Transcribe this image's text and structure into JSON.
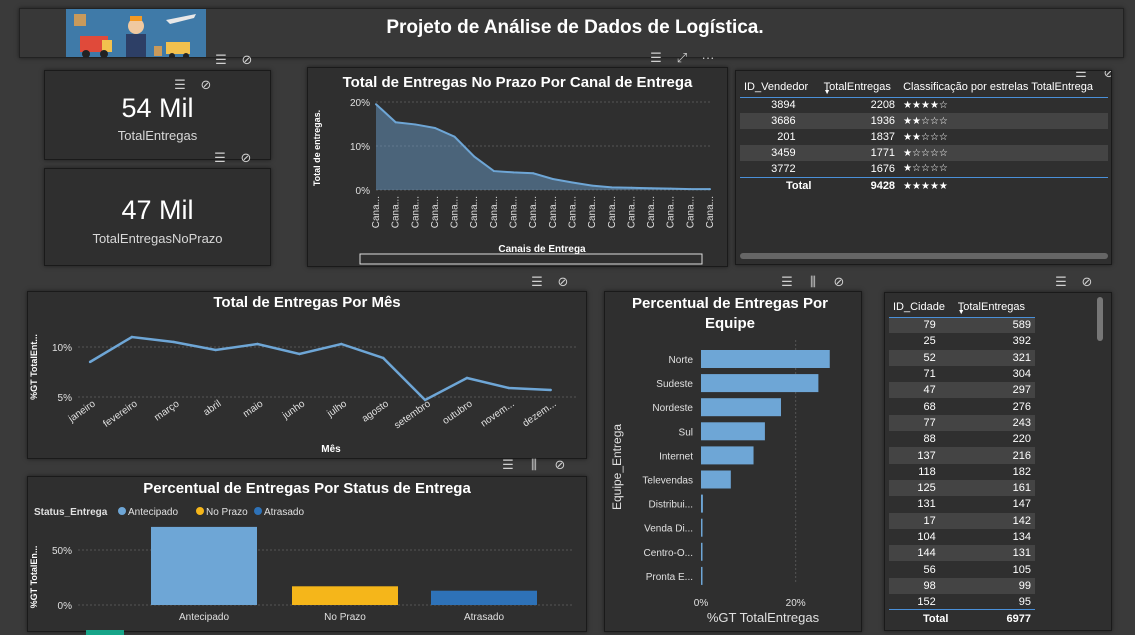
{
  "header": {
    "title": "Projeto de Análise de Dados de Logística."
  },
  "cards": [
    {
      "value": "54 Mil",
      "label": "TotalEntregas"
    },
    {
      "value": "47 Mil",
      "label": "TotalEntregasNoPrazo"
    }
  ],
  "vendedores": {
    "columns": [
      "ID_Vendedor",
      "TotalEntregas",
      "Classificação por estrelas TotalEntrega"
    ],
    "rows": [
      {
        "id": "3894",
        "total": "2208",
        "stars": "★★★★☆"
      },
      {
        "id": "3686",
        "total": "1936",
        "stars": "★★☆☆☆"
      },
      {
        "id": "201",
        "total": "1837",
        "stars": "★★☆☆☆"
      },
      {
        "id": "3459",
        "total": "1771",
        "stars": "★☆☆☆☆"
      },
      {
        "id": "3772",
        "total": "1676",
        "stars": "★☆☆☆☆"
      }
    ],
    "total": {
      "label": "Total",
      "value": "9428",
      "stars": "★★★★★"
    }
  },
  "cidades": {
    "columns": [
      "ID_Cidade",
      "TotalEntregas"
    ],
    "rows": [
      [
        "79",
        "589"
      ],
      [
        "25",
        "392"
      ],
      [
        "52",
        "321"
      ],
      [
        "71",
        "304"
      ],
      [
        "47",
        "297"
      ],
      [
        "68",
        "276"
      ],
      [
        "77",
        "243"
      ],
      [
        "88",
        "220"
      ],
      [
        "137",
        "216"
      ],
      [
        "118",
        "182"
      ],
      [
        "125",
        "161"
      ],
      [
        "131",
        "147"
      ],
      [
        "17",
        "142"
      ],
      [
        "104",
        "134"
      ],
      [
        "144",
        "131"
      ],
      [
        "56",
        "105"
      ],
      [
        "98",
        "99"
      ],
      [
        "152",
        "95"
      ]
    ],
    "total": {
      "label": "Total",
      "value": "6977"
    }
  },
  "chart_data": [
    {
      "type": "area",
      "title": "Total de Entregas No Prazo Por Canal de Entrega",
      "xlabel": "Canais de Entrega",
      "ylabel": "Total de entregas.",
      "yticks": [
        "0%",
        "10%",
        "20%"
      ],
      "ylim": [
        0,
        20
      ],
      "categories": [
        "Cana...",
        "Cana...",
        "Cana...",
        "Cana...",
        "Cana...",
        "Cana...",
        "Cana...",
        "Cana...",
        "Cana...",
        "Cana...",
        "Cana...",
        "Cana...",
        "Cana...",
        "Cana...",
        "Cana...",
        "Cana...",
        "Cana...",
        "Cana..."
      ],
      "values": [
        19.5,
        15.4,
        14.9,
        14.1,
        12.1,
        7.6,
        4.3,
        4.0,
        3.8,
        2.5,
        1.7,
        1.0,
        0.6,
        0.5,
        0.4,
        0.3,
        0.2,
        0.2
      ],
      "color": "#6ea6d6"
    },
    {
      "type": "line",
      "title": "Total de Entregas Por Mês",
      "xlabel": "Mês",
      "ylabel": "%GT TotalEnt...",
      "yticks": [
        "5%",
        "10%"
      ],
      "ylim": [
        3,
        12.5
      ],
      "categories": [
        "janeiro",
        "fevereiro",
        "março",
        "abril",
        "maio",
        "junho",
        "julho",
        "agosto",
        "setembro",
        "outubro",
        "novem...",
        "dezem..."
      ],
      "values": [
        8.5,
        11.0,
        10.5,
        9.7,
        10.3,
        9.3,
        10.3,
        8.9,
        4.7,
        6.9,
        5.9,
        5.7
      ],
      "color": "#6ea6d6"
    },
    {
      "type": "bar",
      "title": "Percentual de Entregas Por Status de Entrega",
      "legend_title": "Status_Entrega",
      "ylabel": "%GT TotalEn...",
      "yticks": [
        "0%",
        "50%"
      ],
      "ylim": [
        0,
        80
      ],
      "categories": [
        "Antecipado",
        "No Prazo",
        "Atrasado"
      ],
      "values": [
        71,
        17,
        13
      ],
      "colors": [
        "#6ea6d6",
        "#f5b61a",
        "#2e72b8"
      ]
    },
    {
      "type": "bar",
      "orientation": "horizontal",
      "title": "Percentual de Entregas Por Equipe",
      "xlabel": "%GT TotalEntregas",
      "ylabel": "Equipe_Entrega",
      "xticks": [
        "0%",
        "20%"
      ],
      "xlim": [
        0,
        30
      ],
      "categories": [
        "Norte",
        "Sudeste",
        "Nordeste",
        "Sul",
        "Internet",
        "Televendas",
        "Distribui...",
        "Venda Di...",
        "Centro-O...",
        "Pronta E..."
      ],
      "values": [
        27.2,
        24.8,
        16.9,
        13.5,
        11.1,
        6.3,
        0.4,
        0.3,
        0.2,
        0.2
      ],
      "color": "#6ea6d6"
    }
  ]
}
